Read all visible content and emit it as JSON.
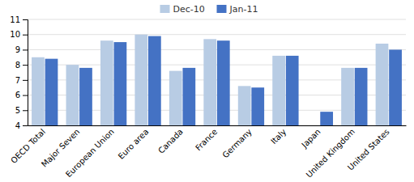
{
  "chart_data": {
    "type": "bar",
    "categories": [
      "OECD Total",
      "Major Seven",
      "European Union",
      "Euro area",
      "Canada",
      "France",
      "Germany",
      "Italy",
      "Japan",
      "United Kingdom",
      "United States"
    ],
    "series": [
      {
        "name": "Dec-10",
        "color": "#b8cce4",
        "values": [
          8.5,
          8.0,
          9.6,
          10.0,
          7.6,
          9.7,
          6.6,
          8.6,
          null,
          7.8,
          9.4
        ]
      },
      {
        "name": "Jan-11",
        "color": "#4472c4",
        "values": [
          8.4,
          7.8,
          9.5,
          9.9,
          7.8,
          9.6,
          6.5,
          8.6,
          4.9,
          7.8,
          9.0
        ]
      }
    ],
    "ylim": [
      4.0,
      11.0
    ],
    "yticks": [
      4,
      5,
      6,
      7,
      8,
      9,
      10,
      11
    ],
    "grid": true,
    "legend": "top"
  }
}
